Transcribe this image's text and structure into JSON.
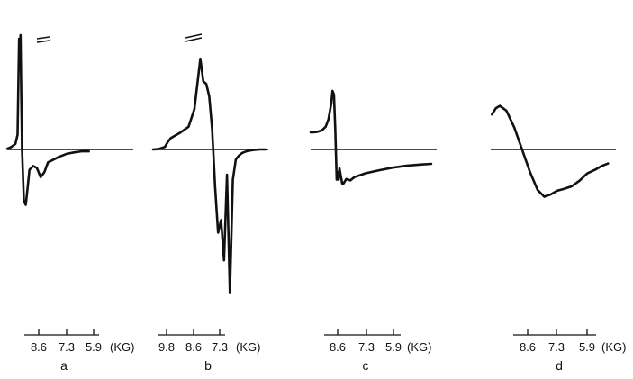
{
  "chart_data": [
    {
      "type": "line",
      "panel_label": "a",
      "unit": "(KG)",
      "tick_labels": [
        "8.6",
        "7.3",
        "5.9"
      ],
      "xlim": [
        9.0,
        5.6
      ],
      "y_units": "arbitrary derivative amplitude",
      "axis_break_on_peak": true,
      "x": [
        9.0,
        8.9,
        8.78,
        8.72,
        8.7,
        8.68,
        8.66,
        8.64,
        8.62,
        8.6,
        8.55,
        8.5,
        8.45,
        8.4,
        8.3,
        8.2,
        8.1,
        8.0,
        7.9,
        7.8,
        7.6,
        7.4,
        7.2,
        7.0,
        6.8
      ],
      "y": [
        0.02,
        0.06,
        0.15,
        0.4,
        1.8,
        3.0,
        2.6,
        3.1,
        1.5,
        0.0,
        -1.4,
        -1.5,
        -1.05,
        -0.55,
        -0.45,
        -0.5,
        -0.75,
        -0.62,
        -0.35,
        -0.3,
        -0.2,
        -0.12,
        -0.08,
        -0.05,
        -0.05
      ]
    },
    {
      "type": "line",
      "panel_label": "b",
      "unit": "(KG)",
      "tick_labels": [
        "9.8",
        "8.6",
        "7.3"
      ],
      "xlim": [
        10.4,
        6.5
      ],
      "y_units": "arbitrary derivative amplitude",
      "axis_break_on_peak": true,
      "x": [
        10.4,
        10.2,
        10.0,
        9.9,
        9.8,
        9.5,
        9.2,
        9.0,
        8.8,
        8.7,
        8.6,
        8.5,
        8.4,
        8.3,
        8.2,
        8.1,
        8.0,
        7.9,
        7.8,
        7.7,
        7.6,
        7.5,
        7.4,
        7.3,
        7.2,
        7.1,
        7.0,
        6.8,
        6.6
      ],
      "y": [
        0.0,
        0.02,
        0.1,
        0.3,
        0.45,
        0.65,
        0.9,
        1.6,
        3.6,
        2.7,
        2.6,
        2.1,
        0.8,
        -1.5,
        -3.3,
        -2.8,
        -4.4,
        -1.0,
        -5.7,
        -1.2,
        -0.4,
        -0.25,
        -0.15,
        -0.1,
        -0.06,
        -0.04,
        -0.02,
        0.0,
        0.0
      ]
    },
    {
      "type": "line",
      "panel_label": "c",
      "unit": "(KG)",
      "tick_labels": [
        "8.6",
        "7.3",
        "5.9"
      ],
      "xlim": [
        10.0,
        5.4
      ],
      "y_units": "arbitrary derivative amplitude",
      "x": [
        10.0,
        9.8,
        9.6,
        9.45,
        9.35,
        9.25,
        9.2,
        9.15,
        9.1,
        9.05,
        9.0,
        8.98,
        8.95,
        8.9,
        8.85,
        8.8,
        8.7,
        8.55,
        8.4,
        8.2,
        8.0,
        7.5,
        7.0,
        6.5,
        6.0,
        5.6
      ],
      "y": [
        0.45,
        0.46,
        0.5,
        0.6,
        0.8,
        1.2,
        1.55,
        1.45,
        0.5,
        -0.8,
        -0.6,
        -0.8,
        -0.5,
        -0.7,
        -0.9,
        -0.9,
        -0.78,
        -0.82,
        -0.73,
        -0.68,
        -0.63,
        -0.55,
        -0.48,
        -0.43,
        -0.4,
        -0.38
      ]
    },
    {
      "type": "line",
      "panel_label": "d",
      "unit": "(KG)",
      "tick_labels": [
        "8.6",
        "7.3",
        "5.9"
      ],
      "xlim": [
        10.0,
        5.2
      ],
      "y_units": "arbitrary derivative amplitude",
      "x": [
        9.95,
        9.8,
        9.65,
        9.4,
        9.1,
        8.8,
        8.5,
        8.2,
        7.95,
        7.7,
        7.45,
        7.2,
        6.9,
        6.6,
        6.3,
        6.0,
        5.75,
        5.5
      ],
      "y": [
        0.95,
        1.12,
        1.18,
        1.05,
        0.6,
        0.0,
        -0.6,
        -1.1,
        -1.28,
        -1.22,
        -1.12,
        -1.07,
        -1.0,
        -0.85,
        -0.65,
        -0.55,
        -0.45,
        -0.38
      ]
    }
  ]
}
